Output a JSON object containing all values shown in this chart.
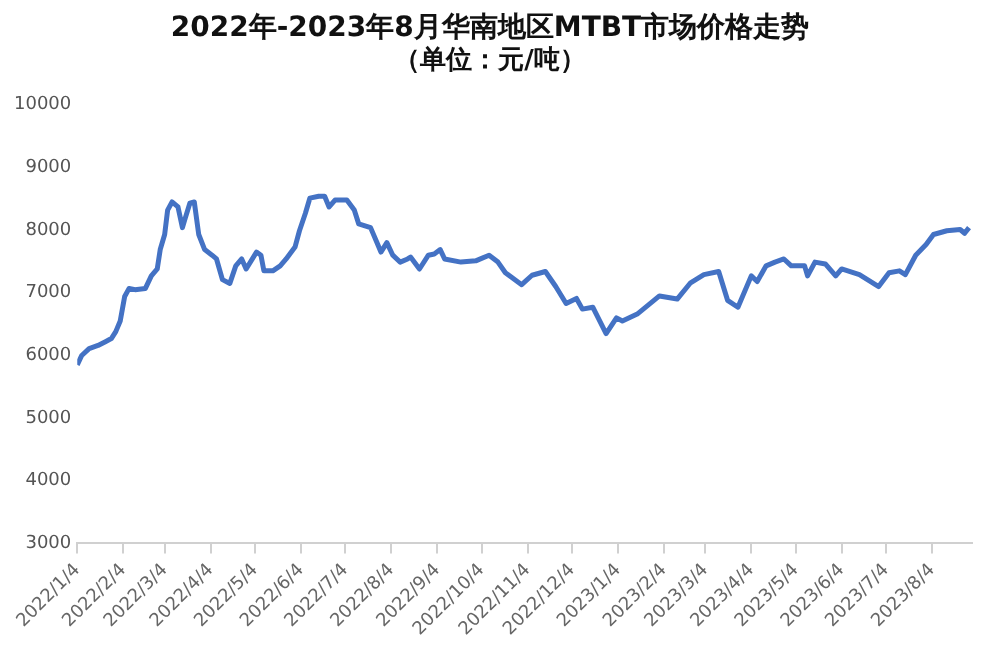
{
  "chart_data": {
    "type": "line",
    "title": "2022年-2023年8月华南地区MTBT市场价格走势",
    "subtitle": "（单位：元/吨）",
    "x": [
      "2022-01-04",
      "2022-01-07",
      "2022-01-12",
      "2022-01-18",
      "2022-01-23",
      "2022-01-27",
      "2022-01-30",
      "2022-02-02",
      "2022-02-05",
      "2022-02-08",
      "2022-02-12",
      "2022-02-19",
      "2022-02-23",
      "2022-02-27",
      "2022-03-01",
      "2022-03-04",
      "2022-03-06",
      "2022-03-09",
      "2022-03-13",
      "2022-03-16",
      "2022-03-18",
      "2022-03-21",
      "2022-03-24",
      "2022-03-27",
      "2022-03-31",
      "2022-04-05",
      "2022-04-08",
      "2022-04-12",
      "2022-04-17",
      "2022-04-21",
      "2022-04-25",
      "2022-04-28",
      "2022-05-05",
      "2022-05-08",
      "2022-05-10",
      "2022-05-16",
      "2022-05-21",
      "2022-05-25",
      "2022-05-31",
      "2022-06-03",
      "2022-06-07",
      "2022-06-10",
      "2022-06-16",
      "2022-06-20",
      "2022-06-23",
      "2022-06-27",
      "2022-07-05",
      "2022-07-10",
      "2022-07-13",
      "2022-07-21",
      "2022-07-25",
      "2022-07-28",
      "2022-08-01",
      "2022-08-05",
      "2022-08-10",
      "2022-08-15",
      "2022-08-17",
      "2022-08-23",
      "2022-08-29",
      "2022-09-02",
      "2022-09-06",
      "2022-09-09",
      "2022-09-20",
      "2022-09-30",
      "2022-10-09",
      "2022-10-15",
      "2022-10-20",
      "2022-10-31",
      "2022-11-07",
      "2022-11-16",
      "2022-11-23",
      "2022-11-30",
      "2022-12-07",
      "2022-12-11",
      "2022-12-18",
      "2022-12-27",
      "2023-01-03",
      "2023-01-07",
      "2023-01-17",
      "2023-02-01",
      "2023-02-13",
      "2023-02-22",
      "2023-03-03",
      "2023-03-13",
      "2023-03-19",
      "2023-03-26",
      "2023-04-04",
      "2023-04-08",
      "2023-04-14",
      "2023-04-20",
      "2023-04-26",
      "2023-05-01",
      "2023-05-10",
      "2023-05-12",
      "2023-05-17",
      "2023-05-24",
      "2023-05-31",
      "2023-06-04",
      "2023-06-16",
      "2023-06-29",
      "2023-07-06",
      "2023-07-13",
      "2023-07-17",
      "2023-07-24",
      "2023-07-31",
      "2023-08-05",
      "2023-08-14",
      "2023-08-23",
      "2023-08-26",
      "2023-08-29"
    ],
    "series": [
      {
        "color": "#4472c4",
        "values": [
          5850,
          6000,
          6110,
          6160,
          6220,
          6270,
          6380,
          6550,
          6940,
          7070,
          7050,
          7070,
          7270,
          7380,
          7690,
          7930,
          8320,
          8450,
          8370,
          8040,
          8200,
          8430,
          8450,
          7930,
          7690,
          7600,
          7540,
          7210,
          7150,
          7430,
          7540,
          7380,
          7650,
          7600,
          7350,
          7350,
          7430,
          7540,
          7730,
          7990,
          8270,
          8510,
          8540,
          8540,
          8370,
          8480,
          8480,
          8320,
          8100,
          8040,
          7820,
          7650,
          7800,
          7600,
          7490,
          7540,
          7570,
          7380,
          7600,
          7620,
          7690,
          7540,
          7490,
          7510,
          7600,
          7490,
          7320,
          7130,
          7280,
          7340,
          7100,
          6830,
          6910,
          6740,
          6770,
          6350,
          6600,
          6550,
          6660,
          6950,
          6900,
          7160,
          7290,
          7340,
          6880,
          6770,
          7270,
          7180,
          7430,
          7490,
          7540,
          7430,
          7430,
          7270,
          7490,
          7460,
          7270,
          7380,
          7290,
          7100,
          7320,
          7350,
          7290,
          7600,
          7770,
          7930,
          7990,
          8010,
          7950,
          8040
        ]
      }
    ],
    "xlim": [
      "2022-01-04",
      "2023-08-31"
    ],
    "xticks": [
      {
        "value": "2022-01-04",
        "label": "2022/1/4"
      },
      {
        "value": "2022-02-04",
        "label": "2022/2/4"
      },
      {
        "value": "2022-03-04",
        "label": "2022/3/4"
      },
      {
        "value": "2022-04-04",
        "label": "2022/4/4"
      },
      {
        "value": "2022-05-04",
        "label": "2022/5/4"
      },
      {
        "value": "2022-06-04",
        "label": "2022/6/4"
      },
      {
        "value": "2022-07-04",
        "label": "2022/7/4"
      },
      {
        "value": "2022-08-04",
        "label": "2022/8/4"
      },
      {
        "value": "2022-09-04",
        "label": "2022/9/4"
      },
      {
        "value": "2022-10-04",
        "label": "2022/10/4"
      },
      {
        "value": "2022-11-04",
        "label": "2022/11/4"
      },
      {
        "value": "2022-12-04",
        "label": "2022/12/4"
      },
      {
        "value": "2023-01-04",
        "label": "2023/1/4"
      },
      {
        "value": "2023-02-04",
        "label": "2023/2/4"
      },
      {
        "value": "2023-03-04",
        "label": "2023/3/4"
      },
      {
        "value": "2023-04-04",
        "label": "2023/4/4"
      },
      {
        "value": "2023-05-04",
        "label": "2023/5/4"
      },
      {
        "value": "2023-06-04",
        "label": "2023/6/4"
      },
      {
        "value": "2023-07-04",
        "label": "2023/7/4"
      },
      {
        "value": "2023-08-04",
        "label": "2023/8/4"
      }
    ],
    "ylim": [
      3000,
      10000
    ],
    "yticks": [
      3000,
      4000,
      5000,
      6000,
      7000,
      8000,
      9000,
      10000
    ],
    "grid": false,
    "legend": false,
    "marker": "none",
    "line_style": "solid"
  }
}
